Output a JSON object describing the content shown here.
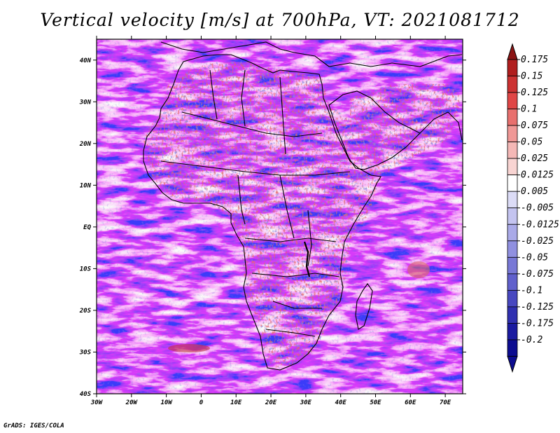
{
  "title": "Vertical velocity [m/s] at 700hPa, VT: 2021081712",
  "footer": "GrADS: IGES/COLA",
  "map": {
    "lon_range": [
      -30,
      75
    ],
    "lat_range": [
      -40,
      45
    ],
    "lon_ticks": [
      {
        "value": -30,
        "label": "30W"
      },
      {
        "value": -20,
        "label": "20W"
      },
      {
        "value": -10,
        "label": "10W"
      },
      {
        "value": 0,
        "label": "0"
      },
      {
        "value": 10,
        "label": "10E"
      },
      {
        "value": 20,
        "label": "20E"
      },
      {
        "value": 30,
        "label": "30E"
      },
      {
        "value": 40,
        "label": "40E"
      },
      {
        "value": 50,
        "label": "50E"
      },
      {
        "value": 60,
        "label": "60E"
      },
      {
        "value": 70,
        "label": "70E"
      }
    ],
    "lat_ticks": [
      {
        "value": 40,
        "label": "40N"
      },
      {
        "value": 30,
        "label": "30N"
      },
      {
        "value": 20,
        "label": "20N"
      },
      {
        "value": 10,
        "label": "10N"
      },
      {
        "value": 0,
        "label": "EQ"
      },
      {
        "value": -10,
        "label": "10S"
      },
      {
        "value": -20,
        "label": "20S"
      },
      {
        "value": -30,
        "label": "30S"
      },
      {
        "value": -40,
        "label": "40S"
      }
    ]
  },
  "colorbar": {
    "colors": [
      "#8b1414",
      "#b01e1e",
      "#cc3232",
      "#e04646",
      "#e8706e",
      "#f09896",
      "#f4b8b6",
      "#f8d4d2",
      "#ffffff",
      "#dcdcf6",
      "#c4c4f0",
      "#aaaae8",
      "#9090e0",
      "#7878d6",
      "#6060cc",
      "#4848c0",
      "#3030b0",
      "#1a1aa0",
      "#0c0c90"
    ],
    "labels": [
      "0.175",
      "0.15",
      "0.125",
      "0.1",
      "0.075",
      "0.05",
      "0.025",
      "0.0125",
      "0.005",
      "-0.005",
      "-0.0125",
      "-0.025",
      "-0.05",
      "-0.075",
      "-0.1",
      "-0.125",
      "-0.175",
      "-0.2"
    ]
  }
}
